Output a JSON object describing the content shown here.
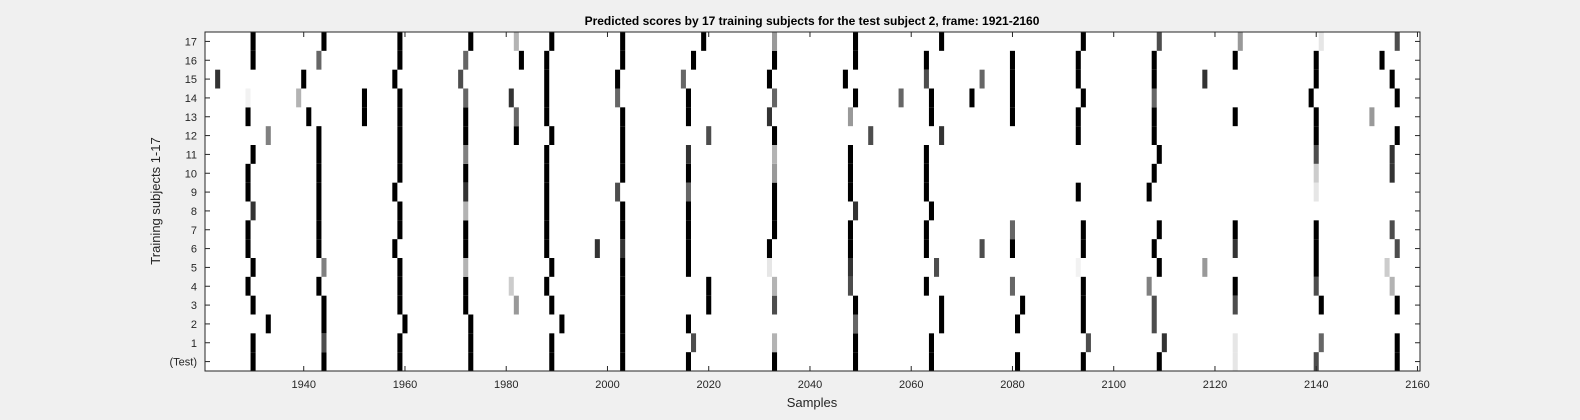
{
  "chart_data": {
    "type": "heatmap",
    "title": "Predicted scores by 17 training subjects for the test subject 2, frame: 1921-2160",
    "xlabel": "Samples",
    "ylabel": "Training subjects 1-17",
    "xlim": [
      1921,
      2160
    ],
    "x_ticks": [
      1940,
      1960,
      1980,
      2000,
      2020,
      2040,
      2060,
      2080,
      2100,
      2120,
      2140,
      2160
    ],
    "y_tick_labels": [
      "(Test)",
      "1",
      "2",
      "3",
      "4",
      "5",
      "6",
      "7",
      "8",
      "9",
      "10",
      "11",
      "12",
      "13",
      "14",
      "15",
      "16",
      "17"
    ],
    "value_range": [
      0,
      1
    ],
    "colormap": "white (0) to black (1)",
    "grid": false,
    "rows": [
      {
        "label": "(Test)",
        "marks": [
          [
            1930,
            1
          ],
          [
            1944,
            1
          ],
          [
            1959,
            1
          ],
          [
            1973,
            1
          ],
          [
            1989,
            1
          ],
          [
            2003,
            1
          ],
          [
            2016,
            1
          ],
          [
            2033,
            1
          ],
          [
            2049,
            1
          ],
          [
            2064,
            1
          ],
          [
            2081,
            1
          ],
          [
            2094,
            1
          ],
          [
            2109,
            1
          ],
          [
            2124,
            0.1
          ],
          [
            2140,
            0.7
          ],
          [
            2156,
            1
          ]
        ]
      },
      {
        "label": "1",
        "marks": [
          [
            1930,
            1
          ],
          [
            1944,
            0.7
          ],
          [
            1959,
            1
          ],
          [
            1973,
            1
          ],
          [
            1989,
            1
          ],
          [
            2003,
            1
          ],
          [
            2017,
            0.7
          ],
          [
            2033,
            0.3
          ],
          [
            2049,
            1
          ],
          [
            2064,
            1
          ],
          [
            2095,
            0.7
          ],
          [
            2110,
            0.8
          ],
          [
            2124,
            0.1
          ],
          [
            2141,
            0.6
          ],
          [
            2156,
            1
          ]
        ]
      },
      {
        "label": "2",
        "marks": [
          [
            1933,
            1
          ],
          [
            1944,
            1
          ],
          [
            1960,
            1
          ],
          [
            1973,
            1
          ],
          [
            1991,
            1
          ],
          [
            2003,
            1
          ],
          [
            2016,
            1
          ],
          [
            2049,
            0.6
          ],
          [
            2066,
            1
          ],
          [
            2081,
            1
          ],
          [
            2094,
            1
          ],
          [
            2108,
            0.7
          ]
        ]
      },
      {
        "label": "3",
        "marks": [
          [
            1930,
            1
          ],
          [
            1944,
            1
          ],
          [
            1959,
            1
          ],
          [
            1972,
            1
          ],
          [
            1982,
            0.4
          ],
          [
            1989,
            1
          ],
          [
            2003,
            1
          ],
          [
            2020,
            1
          ],
          [
            2033,
            0.7
          ],
          [
            2049,
            1
          ],
          [
            2066,
            1
          ],
          [
            2082,
            1
          ],
          [
            2094,
            1
          ],
          [
            2108,
            0.7
          ],
          [
            2124,
            0.7
          ],
          [
            2141,
            1
          ],
          [
            2156,
            1
          ]
        ]
      },
      {
        "label": "4",
        "marks": [
          [
            1929,
            1
          ],
          [
            1943,
            1
          ],
          [
            1959,
            1
          ],
          [
            1972,
            1
          ],
          [
            1981,
            0.2
          ],
          [
            1988,
            1
          ],
          [
            2003,
            1
          ],
          [
            2020,
            1
          ],
          [
            2033,
            0.3
          ],
          [
            2048,
            0.7
          ],
          [
            2063,
            1
          ],
          [
            2080,
            0.6
          ],
          [
            2094,
            1
          ],
          [
            2107,
            0.5
          ],
          [
            2124,
            1
          ],
          [
            2140,
            0.7
          ],
          [
            2155,
            0.3
          ]
        ]
      },
      {
        "label": "5",
        "marks": [
          [
            1930,
            1
          ],
          [
            1944,
            0.5
          ],
          [
            1959,
            1
          ],
          [
            1972,
            0.3
          ],
          [
            1989,
            1
          ],
          [
            2003,
            1
          ],
          [
            2016,
            1
          ],
          [
            2032,
            0.1
          ],
          [
            2048,
            0.8
          ],
          [
            2065,
            0.7
          ],
          [
            2093,
            0.05
          ],
          [
            2109,
            1
          ],
          [
            2118,
            0.4
          ],
          [
            2140,
            1
          ],
          [
            2154,
            0.2
          ]
        ]
      },
      {
        "label": "6",
        "marks": [
          [
            1929,
            1
          ],
          [
            1943,
            1
          ],
          [
            1958,
            1
          ],
          [
            1972,
            1
          ],
          [
            1988,
            1
          ],
          [
            1998,
            0.8
          ],
          [
            2003,
            0.8
          ],
          [
            2016,
            1
          ],
          [
            2032,
            1
          ],
          [
            2048,
            1
          ],
          [
            2063,
            1
          ],
          [
            2074,
            0.7
          ],
          [
            2080,
            1
          ],
          [
            2094,
            1
          ],
          [
            2108,
            1
          ],
          [
            2124,
            0.8
          ],
          [
            2140,
            1
          ],
          [
            2156,
            0.7
          ]
        ]
      },
      {
        "label": "7",
        "marks": [
          [
            1929,
            1
          ],
          [
            1943,
            1
          ],
          [
            1959,
            1
          ],
          [
            1972,
            1
          ],
          [
            1988,
            1
          ],
          [
            2003,
            1
          ],
          [
            2016,
            1
          ],
          [
            2033,
            1
          ],
          [
            2048,
            1
          ],
          [
            2063,
            1
          ],
          [
            2080,
            0.6
          ],
          [
            2094,
            1
          ],
          [
            2109,
            1
          ],
          [
            2124,
            1
          ],
          [
            2140,
            1
          ],
          [
            2155,
            0.7
          ]
        ]
      },
      {
        "label": "8",
        "marks": [
          [
            1930,
            0.8
          ],
          [
            1943,
            1
          ],
          [
            1959,
            1
          ],
          [
            1972,
            0.3
          ],
          [
            1988,
            1
          ],
          [
            2003,
            1
          ],
          [
            2016,
            1
          ],
          [
            2033,
            1
          ],
          [
            2049,
            0.8
          ],
          [
            2064,
            1
          ]
        ]
      },
      {
        "label": "9",
        "marks": [
          [
            1929,
            1
          ],
          [
            1943,
            1
          ],
          [
            1958,
            1
          ],
          [
            1972,
            0.8
          ],
          [
            1988,
            1
          ],
          [
            2002,
            0.7
          ],
          [
            2016,
            0.6
          ],
          [
            2033,
            1
          ],
          [
            2048,
            1
          ],
          [
            2063,
            1
          ],
          [
            2093,
            1
          ],
          [
            2107,
            1
          ],
          [
            2140,
            0.1
          ]
        ]
      },
      {
        "label": "10",
        "marks": [
          [
            1929,
            1
          ],
          [
            1943,
            1
          ],
          [
            1959,
            1
          ],
          [
            1972,
            1
          ],
          [
            1988,
            1
          ],
          [
            2003,
            1
          ],
          [
            2016,
            1
          ],
          [
            2033,
            0.4
          ],
          [
            2048,
            1
          ],
          [
            2063,
            1
          ],
          [
            2108,
            1
          ],
          [
            2140,
            0.2
          ],
          [
            2155,
            0.8
          ]
        ]
      },
      {
        "label": "11",
        "marks": [
          [
            1930,
            1
          ],
          [
            1943,
            1
          ],
          [
            1959,
            1
          ],
          [
            1972,
            0.5
          ],
          [
            1988,
            1
          ],
          [
            2003,
            1
          ],
          [
            2016,
            0.8
          ],
          [
            2033,
            0.3
          ],
          [
            2048,
            1
          ],
          [
            2063,
            1
          ],
          [
            2109,
            1
          ],
          [
            2140,
            0.7
          ],
          [
            2155,
            0.8
          ]
        ]
      },
      {
        "label": "12",
        "marks": [
          [
            1933,
            0.5
          ],
          [
            1943,
            1
          ],
          [
            1959,
            1
          ],
          [
            1972,
            1
          ],
          [
            1982,
            1
          ],
          [
            1989,
            1
          ],
          [
            2003,
            1
          ],
          [
            2020,
            0.7
          ],
          [
            2033,
            1
          ],
          [
            2052,
            0.7
          ],
          [
            2066,
            0.8
          ],
          [
            2093,
            1
          ],
          [
            2108,
            1
          ],
          [
            2140,
            1
          ],
          [
            2156,
            1
          ]
        ]
      },
      {
        "label": "13",
        "marks": [
          [
            1929,
            1
          ],
          [
            1941,
            1
          ],
          [
            1952,
            1
          ],
          [
            1959,
            1
          ],
          [
            1972,
            1
          ],
          [
            1982,
            0.6
          ],
          [
            1988,
            1
          ],
          [
            2003,
            1
          ],
          [
            2016,
            1
          ],
          [
            2032,
            0.8
          ],
          [
            2048,
            0.4
          ],
          [
            2064,
            1
          ],
          [
            2080,
            1
          ],
          [
            2093,
            1
          ],
          [
            2108,
            1
          ],
          [
            2124,
            1
          ],
          [
            2140,
            1
          ],
          [
            2151,
            0.4
          ]
        ]
      },
      {
        "label": "14",
        "marks": [
          [
            1929,
            0.05
          ],
          [
            1939,
            0.3
          ],
          [
            1952,
            1
          ],
          [
            1959,
            1
          ],
          [
            1972,
            0.6
          ],
          [
            1981,
            0.8
          ],
          [
            1988,
            1
          ],
          [
            2002,
            0.6
          ],
          [
            2016,
            1
          ],
          [
            2033,
            0.6
          ],
          [
            2049,
            1
          ],
          [
            2058,
            0.6
          ],
          [
            2064,
            1
          ],
          [
            2072,
            1
          ],
          [
            2080,
            1
          ],
          [
            2094,
            1
          ],
          [
            2108,
            0.6
          ],
          [
            2139,
            1
          ],
          [
            2156,
            1
          ]
        ]
      },
      {
        "label": "15",
        "marks": [
          [
            1923,
            0.8
          ],
          [
            1940,
            1
          ],
          [
            1958,
            1
          ],
          [
            1971,
            0.7
          ],
          [
            1988,
            1
          ],
          [
            2002,
            1
          ],
          [
            2015,
            0.6
          ],
          [
            2032,
            1
          ],
          [
            2047,
            1
          ],
          [
            2063,
            0.7
          ],
          [
            2074,
            0.6
          ],
          [
            2080,
            1
          ],
          [
            2093,
            1
          ],
          [
            2108,
            1
          ],
          [
            2118,
            0.8
          ],
          [
            2140,
            1
          ],
          [
            2155,
            1
          ]
        ]
      },
      {
        "label": "16",
        "marks": [
          [
            1930,
            1
          ],
          [
            1943,
            0.6
          ],
          [
            1959,
            1
          ],
          [
            1972,
            0.6
          ],
          [
            1983,
            1
          ],
          [
            1988,
            1
          ],
          [
            2003,
            1
          ],
          [
            2017,
            1
          ],
          [
            2033,
            1
          ],
          [
            2049,
            1
          ],
          [
            2063,
            1
          ],
          [
            2080,
            1
          ],
          [
            2093,
            1
          ],
          [
            2108,
            1
          ],
          [
            2124,
            1
          ],
          [
            2140,
            1
          ],
          [
            2153,
            1
          ]
        ]
      },
      {
        "label": "17",
        "marks": [
          [
            1930,
            1
          ],
          [
            1944,
            1
          ],
          [
            1959,
            1
          ],
          [
            1973,
            1
          ],
          [
            1982,
            0.3
          ],
          [
            1989,
            1
          ],
          [
            2003,
            1
          ],
          [
            2019,
            1
          ],
          [
            2033,
            0.4
          ],
          [
            2049,
            1
          ],
          [
            2066,
            1
          ],
          [
            2094,
            1
          ],
          [
            2109,
            0.7
          ],
          [
            2125,
            0.4
          ],
          [
            2141,
            0.1
          ],
          [
            2156,
            0.7
          ]
        ]
      }
    ]
  }
}
